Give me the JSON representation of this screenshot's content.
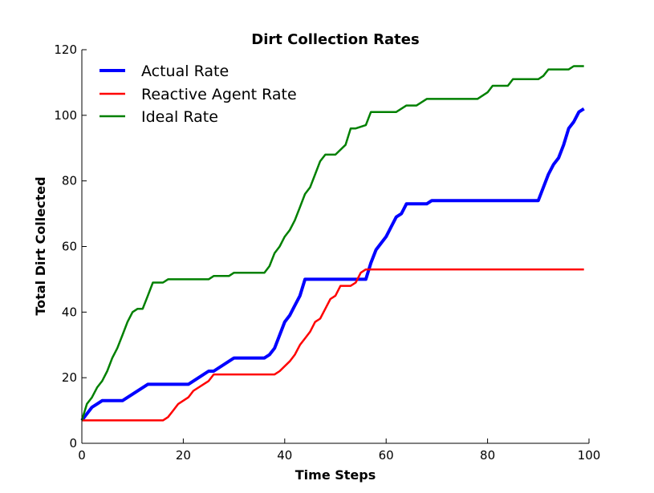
{
  "chart_data": {
    "type": "line",
    "title": "Dirt Collection Rates",
    "xlabel": "Time Steps",
    "ylabel": "Total Dirt Collected",
    "xlim": [
      0,
      100
    ],
    "ylim": [
      0,
      120
    ],
    "xticks": [
      0,
      20,
      40,
      60,
      80,
      100
    ],
    "yticks": [
      0,
      20,
      40,
      60,
      80,
      100,
      120
    ],
    "grid": false,
    "legend": "top-left",
    "series": [
      {
        "name": "Actual Rate",
        "color": "#0000ff",
        "emphasis": "thick",
        "x": [
          0,
          1,
          2,
          3,
          4,
          8,
          13,
          21,
          25,
          26,
          30,
          36,
          37,
          38,
          39,
          40,
          41,
          42,
          43,
          44,
          56,
          57,
          58,
          59,
          60,
          61,
          62,
          63,
          64,
          68,
          69,
          90,
          91,
          92,
          93,
          94,
          95,
          96,
          97,
          98,
          99
        ],
        "y": [
          7,
          9,
          11,
          12,
          13,
          13,
          18,
          18,
          22,
          22,
          26,
          26,
          27,
          29,
          33,
          37,
          39,
          42,
          45,
          50,
          50,
          55,
          59,
          61,
          63,
          66,
          69,
          70,
          73,
          73,
          74,
          74,
          78,
          82,
          85,
          87,
          91,
          96,
          98,
          101,
          102
        ]
      },
      {
        "name": "Reactive Agent Rate",
        "color": "#ff0000",
        "emphasis": "normal",
        "x": [
          0,
          16,
          17,
          18,
          19,
          21,
          22,
          25,
          26,
          38,
          39,
          41,
          42,
          43,
          44,
          45,
          46,
          47,
          48,
          49,
          50,
          51,
          53,
          54,
          55,
          56,
          57,
          99
        ],
        "y": [
          7,
          7,
          8,
          10,
          12,
          14,
          16,
          19,
          21,
          21,
          22,
          25,
          27,
          30,
          32,
          34,
          37,
          38,
          41,
          44,
          45,
          48,
          48,
          49,
          52,
          53,
          53,
          53
        ]
      },
      {
        "name": "Ideal Rate",
        "color": "#008000",
        "emphasis": "normal",
        "x": [
          0,
          1,
          2,
          3,
          4,
          5,
          6,
          7,
          8,
          9,
          10,
          11,
          12,
          13,
          14,
          15,
          16,
          17,
          25,
          26,
          29,
          30,
          36,
          37,
          38,
          39,
          40,
          41,
          42,
          43,
          44,
          45,
          46,
          47,
          48,
          49,
          50,
          52,
          53,
          54,
          56,
          57,
          58,
          62,
          64,
          66,
          68,
          78,
          80,
          81,
          84,
          85,
          90,
          91,
          92,
          96,
          97,
          99
        ],
        "y": [
          7,
          12,
          14,
          17,
          19,
          22,
          26,
          29,
          33,
          37,
          40,
          41,
          41,
          45,
          49,
          49,
          49,
          50,
          50,
          51,
          51,
          52,
          52,
          54,
          58,
          60,
          63,
          65,
          68,
          72,
          76,
          78,
          82,
          86,
          88,
          88,
          88,
          91,
          96,
          96,
          97,
          101,
          101,
          101,
          103,
          103,
          105,
          105,
          107,
          109,
          109,
          111,
          111,
          112,
          114,
          114,
          115,
          115
        ]
      }
    ]
  }
}
